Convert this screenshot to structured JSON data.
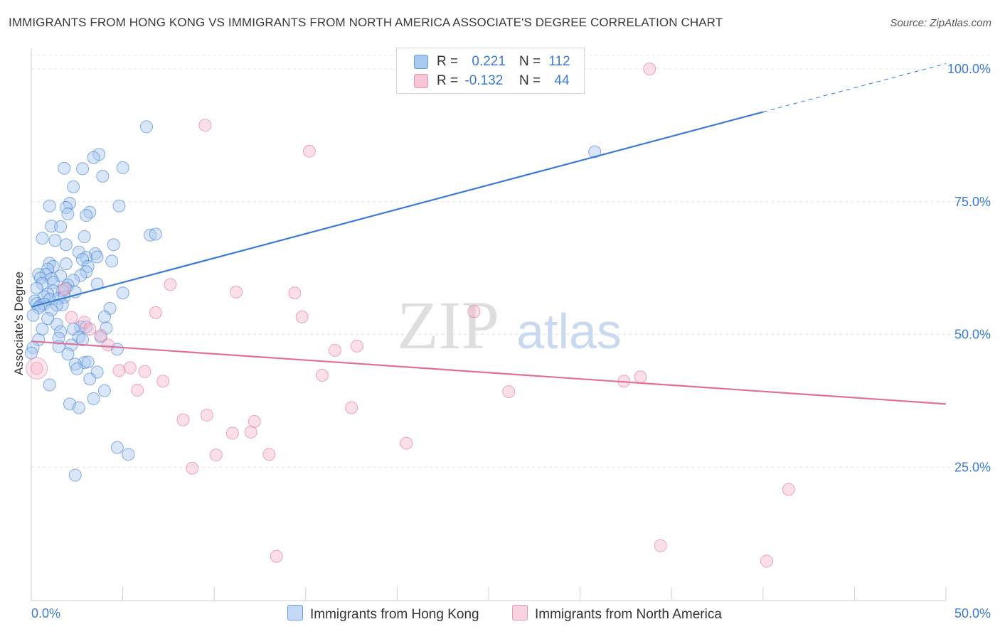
{
  "title": "IMMIGRANTS FROM HONG KONG VS IMMIGRANTS FROM NORTH AMERICA ASSOCIATE'S DEGREE CORRELATION CHART",
  "source": "Source: ZipAtlas.com",
  "watermark": {
    "zip": "ZIP",
    "atlas": "atlas"
  },
  "legend": {
    "rows": [
      {
        "r_label": "R =",
        "r_value": "0.221",
        "n_label": "N =",
        "n_value": "112",
        "color": "#a9c8f0"
      },
      {
        "r_label": "R =",
        "r_value": "-0.132",
        "n_label": "N =",
        "n_value": "44",
        "color": "#f7b8cb"
      }
    ]
  },
  "bottom_legend": [
    {
      "label": "Immigrants from Hong Kong",
      "color": "#a9c8f0"
    },
    {
      "label": "Immigrants from North America",
      "color": "#f7b8cb"
    }
  ],
  "chart_data": {
    "type": "scatter",
    "title": "IMMIGRANTS FROM HONG KONG VS IMMIGRANTS FROM NORTH AMERICA ASSOCIATE'S DEGREE CORRELATION CHART",
    "xlabel": "",
    "ylabel": "Associate's Degree",
    "xlim": [
      0,
      50
    ],
    "ylim": [
      0,
      102
    ],
    "x_tick_labels": [
      "0.0%",
      "50.0%"
    ],
    "y_ticks": [
      25,
      50,
      75,
      100
    ],
    "y_tick_labels": [
      "25.0%",
      "50.0%",
      "75.0%",
      "100.0%"
    ],
    "grid": true,
    "series": [
      {
        "name": "Immigrants from Hong Kong",
        "color": "#3a7bd5",
        "fill": "#a9c8f0",
        "trend": {
          "x0": 0,
          "y0": 55.2,
          "x1": 40,
          "y1": 91.9,
          "dash_to_x": 50,
          "dash_to_y": 101
        },
        "points": [
          [
            6.3,
            89.1
          ],
          [
            3.7,
            83.9
          ],
          [
            3.4,
            83.3
          ],
          [
            1.8,
            81.3
          ],
          [
            2.8,
            81.2
          ],
          [
            5.0,
            81.4
          ],
          [
            3.9,
            79.8
          ],
          [
            2.3,
            77.8
          ],
          [
            1.0,
            74.2
          ],
          [
            2.1,
            74.7
          ],
          [
            1.9,
            73.9
          ],
          [
            4.8,
            74.2
          ],
          [
            3.2,
            73.0
          ],
          [
            3.0,
            72.4
          ],
          [
            2.0,
            72.7
          ],
          [
            1.1,
            70.4
          ],
          [
            1.6,
            70.3
          ],
          [
            6.5,
            68.7
          ],
          [
            2.9,
            68.4
          ],
          [
            6.8,
            68.9
          ],
          [
            0.6,
            68.1
          ],
          [
            1.3,
            67.7
          ],
          [
            4.5,
            66.9
          ],
          [
            1.9,
            66.9
          ],
          [
            2.6,
            65.5
          ],
          [
            3.5,
            65.2
          ],
          [
            3.0,
            64.5
          ],
          [
            3.6,
            64.6
          ],
          [
            2.8,
            64.1
          ],
          [
            4.4,
            63.8
          ],
          [
            1.0,
            63.4
          ],
          [
            1.2,
            62.8
          ],
          [
            0.9,
            62.3
          ],
          [
            1.9,
            63.3
          ],
          [
            3.1,
            62.8
          ],
          [
            3.0,
            61.8
          ],
          [
            0.4,
            61.3
          ],
          [
            0.8,
            61.3
          ],
          [
            2.7,
            61.1
          ],
          [
            1.6,
            61.0
          ],
          [
            0.5,
            60.6
          ],
          [
            1.1,
            60.5
          ],
          [
            2.3,
            60.2
          ],
          [
            1.2,
            59.8
          ],
          [
            2.0,
            59.3
          ],
          [
            0.6,
            59.6
          ],
          [
            0.3,
            58.7
          ],
          [
            1.9,
            58.7
          ],
          [
            1.7,
            58.2
          ],
          [
            3.6,
            59.5
          ],
          [
            1.2,
            58.2
          ],
          [
            2.4,
            58.0
          ],
          [
            0.9,
            57.6
          ],
          [
            0.7,
            57.1
          ],
          [
            1.0,
            56.6
          ],
          [
            1.5,
            56.8
          ],
          [
            0.2,
            56.3
          ],
          [
            1.8,
            57.0
          ],
          [
            5.0,
            57.8
          ],
          [
            0.3,
            55.8
          ],
          [
            0.5,
            55.4
          ],
          [
            0.7,
            55.7
          ],
          [
            0.4,
            55.0
          ],
          [
            1.7,
            55.6
          ],
          [
            1.4,
            55.5
          ],
          [
            4.3,
            54.9
          ],
          [
            1.1,
            54.6
          ],
          [
            4.0,
            53.3
          ],
          [
            0.9,
            53.0
          ],
          [
            0.1,
            53.6
          ],
          [
            2.7,
            51.4
          ],
          [
            1.4,
            51.9
          ],
          [
            3.0,
            51.4
          ],
          [
            2.3,
            51.0
          ],
          [
            0.6,
            51.0
          ],
          [
            4.1,
            51.2
          ],
          [
            1.6,
            50.5
          ],
          [
            2.6,
            49.5
          ],
          [
            1.5,
            49.3
          ],
          [
            3.8,
            49.5
          ],
          [
            2.8,
            49.0
          ],
          [
            0.4,
            49.0
          ],
          [
            2.2,
            48.0
          ],
          [
            4.7,
            47.2
          ],
          [
            1.5,
            47.7
          ],
          [
            2.0,
            46.3
          ],
          [
            0.1,
            47.5
          ],
          [
            0.0,
            46.5
          ],
          [
            2.9,
            44.7
          ],
          [
            3.1,
            44.8
          ],
          [
            2.4,
            44.4
          ],
          [
            2.5,
            43.5
          ],
          [
            3.6,
            42.9
          ],
          [
            3.2,
            41.6
          ],
          [
            1.0,
            40.5
          ],
          [
            4.0,
            39.4
          ],
          [
            3.4,
            37.9
          ],
          [
            2.1,
            36.9
          ],
          [
            2.6,
            36.2
          ],
          [
            4.7,
            28.7
          ],
          [
            5.3,
            27.4
          ],
          [
            2.4,
            23.5
          ],
          [
            30.8,
            84.4
          ]
        ]
      },
      {
        "name": "Immigrants from North America",
        "color": "#e0709a",
        "fill": "#f7b8cb",
        "trend": {
          "x0": 0,
          "y0": 48.7,
          "x1": 50,
          "y1": 36.9
        },
        "points": [
          [
            33.8,
            100.0
          ],
          [
            9.5,
            89.4
          ],
          [
            15.2,
            84.5
          ],
          [
            7.6,
            59.4
          ],
          [
            11.2,
            58.0
          ],
          [
            14.4,
            57.8
          ],
          [
            6.8,
            54.1
          ],
          [
            14.8,
            53.3
          ],
          [
            24.2,
            54.3
          ],
          [
            2.2,
            53.2
          ],
          [
            2.9,
            52.3
          ],
          [
            1.8,
            58.5
          ],
          [
            3.2,
            51.0
          ],
          [
            3.8,
            49.8
          ],
          [
            4.2,
            48.0
          ],
          [
            16.6,
            47.0
          ],
          [
            17.8,
            47.8
          ],
          [
            5.4,
            43.7
          ],
          [
            4.8,
            43.2
          ],
          [
            6.2,
            43.0
          ],
          [
            15.9,
            42.3
          ],
          [
            0.3,
            43.6
          ],
          [
            7.2,
            41.2
          ],
          [
            5.8,
            39.5
          ],
          [
            26.1,
            39.2
          ],
          [
            32.4,
            41.2
          ],
          [
            33.3,
            42.0
          ],
          [
            9.6,
            34.8
          ],
          [
            8.3,
            33.9
          ],
          [
            12.2,
            33.6
          ],
          [
            11.0,
            31.4
          ],
          [
            12.0,
            31.6
          ],
          [
            17.5,
            36.2
          ],
          [
            20.5,
            29.5
          ],
          [
            10.1,
            27.3
          ],
          [
            13.0,
            27.4
          ],
          [
            8.8,
            24.8
          ],
          [
            41.4,
            20.8
          ],
          [
            34.4,
            10.2
          ],
          [
            13.4,
            8.2
          ],
          [
            40.2,
            7.3
          ]
        ]
      }
    ]
  }
}
